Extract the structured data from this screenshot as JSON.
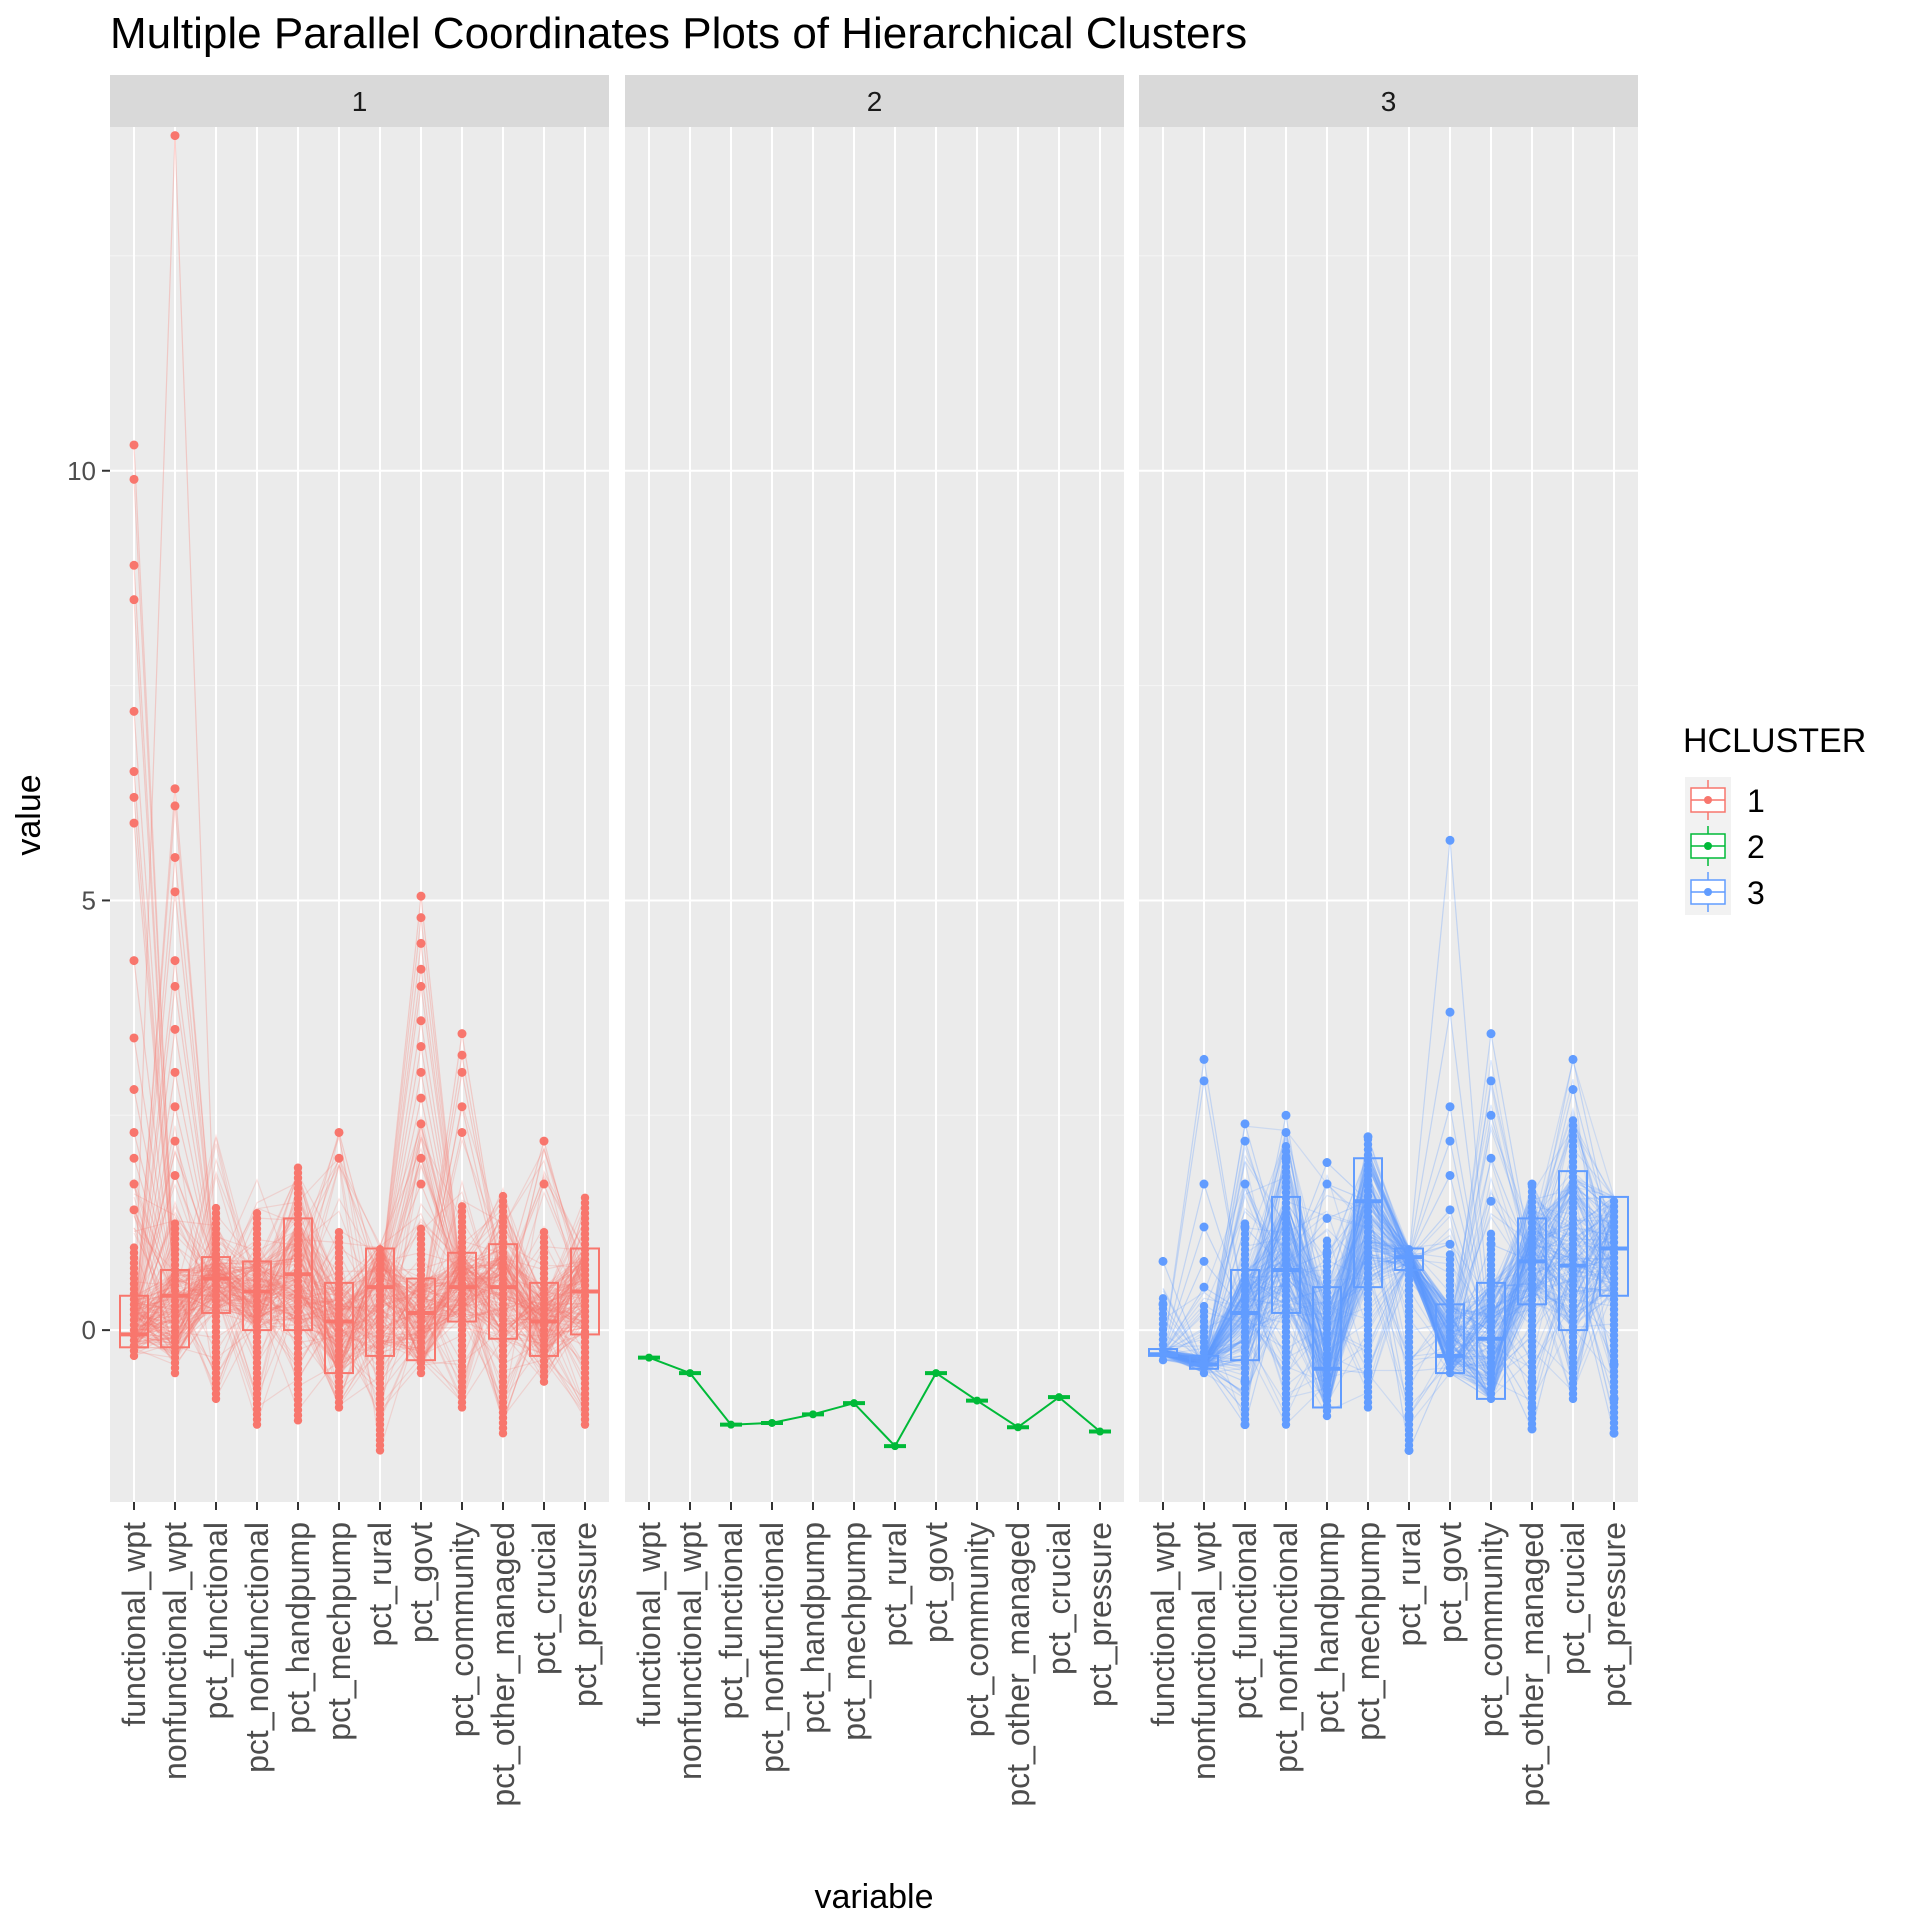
{
  "chart_data": {
    "type": "parallel_coordinates",
    "title": "Multiple Parallel Coordinates Plots of Hierarchical Clusters",
    "xlabel": "variable",
    "ylabel": "value",
    "ylim": [
      -2.0,
      14.0
    ],
    "y_ticks": [
      0,
      5,
      10
    ],
    "y_tick_labels": [
      "0",
      "5",
      "10"
    ],
    "grid": true,
    "variables": [
      "functional_wpt",
      "nonfunctional_wpt",
      "pct_functional",
      "pct_nonfunctional",
      "pct_handpump",
      "pct_mechpump",
      "pct_rural",
      "pct_govt",
      "pct_community",
      "pct_other_managed",
      "pct_crucial",
      "pct_pressure"
    ],
    "legend": {
      "title": "HCLUSTER",
      "position": "right",
      "entries": [
        "1",
        "2",
        "3"
      ]
    },
    "panels": [
      {
        "label": "1",
        "color": "#F8766D",
        "box_q1": [
          -0.2,
          -0.2,
          0.2,
          0.0,
          0.0,
          -0.5,
          -0.3,
          -0.35,
          0.1,
          -0.1,
          -0.3,
          -0.05
        ],
        "box_median": [
          -0.05,
          0.4,
          0.6,
          0.45,
          0.65,
          0.1,
          0.5,
          0.2,
          0.5,
          0.5,
          0.1,
          0.45
        ],
        "box_q3": [
          0.4,
          0.7,
          0.85,
          0.8,
          1.3,
          0.55,
          0.95,
          0.6,
          0.9,
          1.0,
          0.55,
          0.95
        ],
        "min": [
          -0.3,
          -0.5,
          -0.8,
          -1.1,
          -1.05,
          -0.9,
          -1.4,
          -0.5,
          -0.9,
          -1.2,
          -0.6,
          -1.1
        ],
        "max": [
          10.3,
          13.9,
          2.4,
          1.95,
          1.95,
          2.3,
          1.0,
          5.05,
          3.45,
          1.7,
          2.2,
          1.6
        ],
        "outliers": [
          [
            10.3,
            9.9,
            8.9,
            8.5,
            7.2,
            6.5,
            6.2,
            5.9,
            4.3,
            3.4,
            2.8,
            2.3,
            2.0,
            1.7,
            1.4
          ],
          [
            13.9,
            6.3,
            6.1,
            5.5,
            5.1,
            4.3,
            4.0,
            3.5,
            3.0,
            2.6,
            2.2,
            1.8
          ],
          [],
          [],
          [],
          [
            2.3,
            2.0
          ],
          [],
          [
            5.05,
            4.8,
            4.5,
            4.2,
            4.0,
            3.6,
            3.3,
            3.0,
            2.7,
            2.4,
            2.0,
            1.7
          ],
          [
            3.45,
            3.2,
            3.0,
            2.6,
            2.3
          ],
          [],
          [
            2.2,
            1.7
          ],
          []
        ]
      },
      {
        "label": "2",
        "color": "#00BA38",
        "values": [
          -0.32,
          -0.5,
          -1.1,
          -1.08,
          -0.98,
          -0.85,
          -1.35,
          -0.5,
          -0.82,
          -1.13,
          -0.78,
          -1.18
        ]
      },
      {
        "label": "3",
        "color": "#619CFF",
        "box_q1": [
          -0.3,
          -0.45,
          -0.35,
          0.2,
          -0.9,
          0.5,
          0.7,
          -0.5,
          -0.8,
          0.3,
          0.0,
          0.4
        ],
        "box_median": [
          -0.28,
          -0.4,
          0.2,
          0.7,
          -0.45,
          1.5,
          0.85,
          -0.3,
          -0.1,
          0.8,
          0.75,
          0.95
        ],
        "box_q3": [
          -0.22,
          -0.3,
          0.7,
          1.55,
          0.5,
          2.0,
          0.95,
          0.3,
          0.55,
          1.3,
          1.85,
          1.55
        ],
        "min": [
          -0.35,
          -0.5,
          -1.1,
          -1.1,
          -1.0,
          -0.9,
          -1.4,
          -0.5,
          -0.8,
          -1.15,
          -0.8,
          -1.2
        ],
        "max": [
          0.8,
          3.15,
          2.4,
          2.5,
          1.95,
          2.25,
          1.0,
          5.7,
          3.45,
          1.7,
          3.15,
          1.55
        ],
        "outliers": [
          [
            0.8,
            0.3
          ],
          [
            3.15,
            2.9,
            1.7,
            1.2,
            0.8,
            0.5
          ],
          [
            2.4,
            2.2,
            1.7,
            1.2,
            -0.6,
            -1.1
          ],
          [
            2.5,
            2.3,
            2.0
          ],
          [
            1.95,
            1.7,
            1.3,
            0.9
          ],
          [
            2.25,
            -0.5
          ],
          [
            -1.0,
            -1.4
          ],
          [
            5.7,
            3.7,
            2.6,
            2.2,
            1.8,
            1.4,
            1.0
          ],
          [
            3.45,
            2.9,
            2.5,
            2.0,
            1.5,
            1.0
          ],
          [
            1.7,
            -0.6,
            -0.9,
            -1.15
          ],
          [
            3.15,
            2.8
          ],
          [
            -0.4,
            -0.8,
            -1.2
          ]
        ]
      }
    ]
  }
}
